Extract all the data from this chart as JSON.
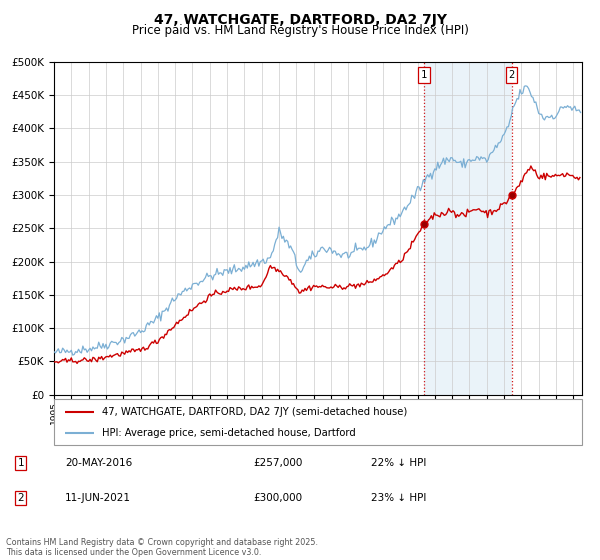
{
  "title": "47, WATCHGATE, DARTFORD, DA2 7JY",
  "subtitle": "Price paid vs. HM Land Registry's House Price Index (HPI)",
  "title_fontsize": 10,
  "subtitle_fontsize": 8.5,
  "background_color": "#ffffff",
  "plot_bg_color": "#ffffff",
  "grid_color": "#cccccc",
  "hpi_color": "#7bafd4",
  "hpi_fill_color": "#d6e8f5",
  "price_color": "#cc0000",
  "marker1_date": 2016.38,
  "marker2_date": 2021.44,
  "marker1_price": 257000,
  "marker2_price": 300000,
  "legend_label1": "47, WATCHGATE, DARTFORD, DA2 7JY (semi-detached house)",
  "legend_label2": "HPI: Average price, semi-detached house, Dartford",
  "footer": "Contains HM Land Registry data © Crown copyright and database right 2025.\nThis data is licensed under the Open Government Licence v3.0.",
  "ylim": [
    0,
    500000
  ],
  "yticks": [
    0,
    50000,
    100000,
    150000,
    200000,
    250000,
    300000,
    350000,
    400000,
    450000,
    500000
  ],
  "xlim_start": 1995,
  "xlim_end": 2025.5
}
